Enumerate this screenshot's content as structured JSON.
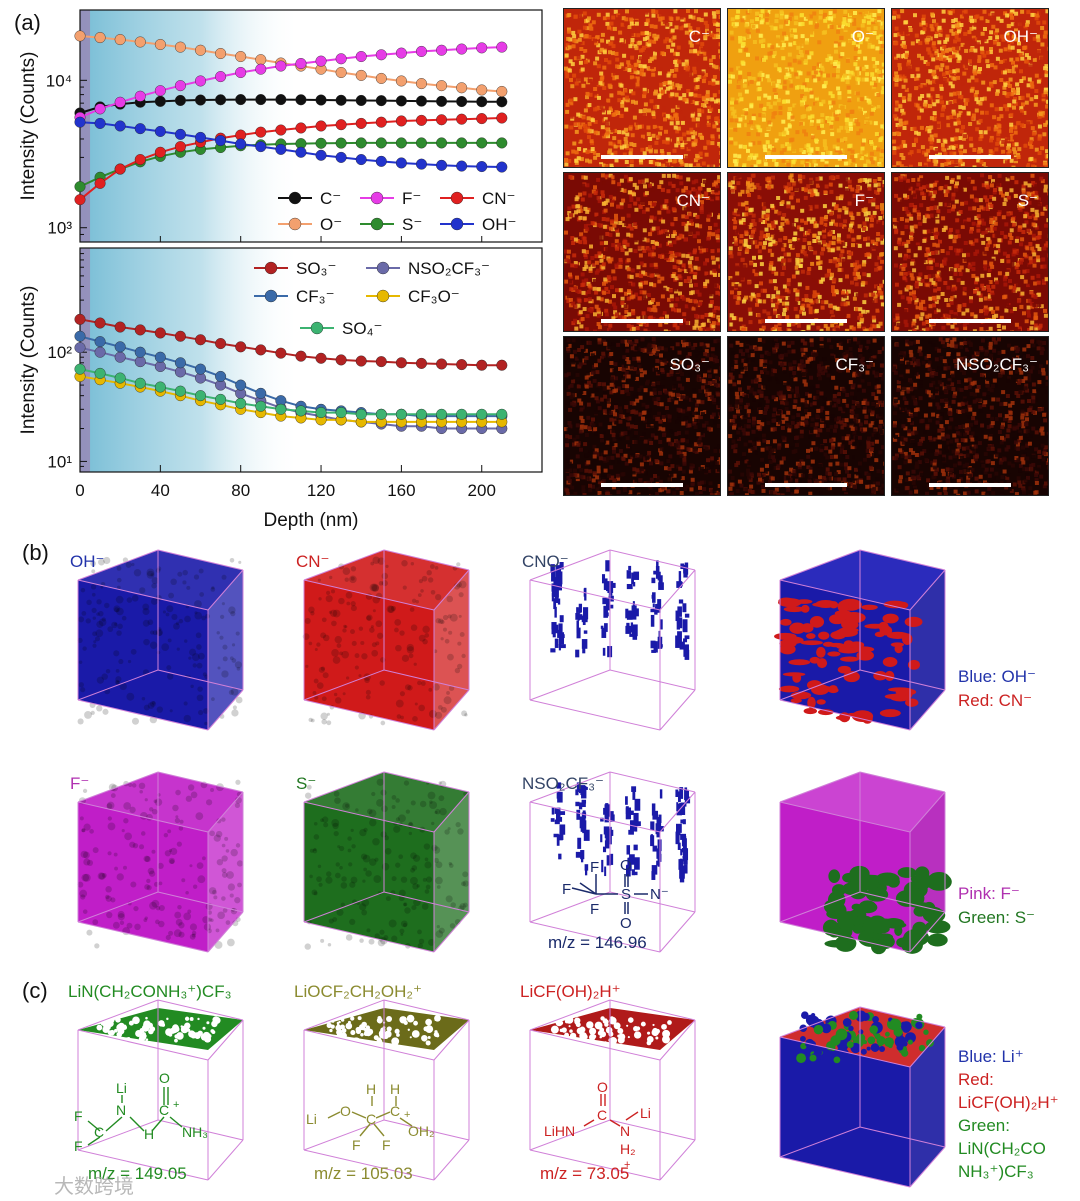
{
  "panel_labels": {
    "a": "(a)",
    "b": "(b)",
    "c": "(c)"
  },
  "chart_data": [
    {
      "type": "line",
      "id": "top",
      "title": "",
      "ylabel": "Intensity (Counts)",
      "yscale": "log",
      "ylim": [
        800,
        30000
      ],
      "xlim": [
        0,
        230
      ],
      "yticks": [
        "10³",
        "10⁴"
      ],
      "shaded_region_depth": [
        0,
        110
      ],
      "series": [
        {
          "name": "C⁻",
          "color": "#111111",
          "x": [
            0,
            10,
            20,
            30,
            40,
            50,
            60,
            70,
            80,
            90,
            100,
            110,
            120,
            130,
            140,
            150,
            160,
            170,
            180,
            190,
            200,
            210
          ],
          "values": [
            6000,
            6600,
            6900,
            7100,
            7200,
            7300,
            7350,
            7380,
            7400,
            7400,
            7400,
            7380,
            7350,
            7320,
            7300,
            7280,
            7250,
            7230,
            7200,
            7180,
            7160,
            7150
          ]
        },
        {
          "name": "O⁻",
          "color": "#f3a06e",
          "x": [
            0,
            10,
            20,
            30,
            40,
            50,
            60,
            70,
            80,
            90,
            100,
            110,
            120,
            130,
            140,
            150,
            160,
            170,
            180,
            190,
            200,
            210
          ],
          "values": [
            20000,
            19500,
            18900,
            18200,
            17500,
            16800,
            16000,
            15200,
            14500,
            13800,
            13100,
            12500,
            11900,
            11300,
            10800,
            10300,
            9900,
            9500,
            9200,
            8900,
            8600,
            8400
          ]
        },
        {
          "name": "F⁻",
          "color": "#e63ce6",
          "x": [
            0,
            10,
            20,
            30,
            40,
            50,
            60,
            70,
            80,
            90,
            100,
            110,
            120,
            130,
            140,
            150,
            160,
            170,
            180,
            190,
            200,
            210
          ],
          "values": [
            5600,
            6400,
            7100,
            7800,
            8500,
            9200,
            9900,
            10600,
            11300,
            11900,
            12500,
            13000,
            13500,
            14000,
            14500,
            14900,
            15300,
            15700,
            16000,
            16300,
            16600,
            16800
          ]
        },
        {
          "name": "S⁻",
          "color": "#2e8b2e",
          "x": [
            0,
            10,
            20,
            30,
            40,
            50,
            60,
            70,
            80,
            90,
            100,
            110,
            120,
            130,
            140,
            150,
            160,
            170,
            180,
            190,
            200,
            210
          ],
          "values": [
            1900,
            2200,
            2500,
            2800,
            3050,
            3250,
            3400,
            3500,
            3600,
            3650,
            3700,
            3720,
            3740,
            3750,
            3760,
            3760,
            3760,
            3760,
            3760,
            3760,
            3760,
            3760
          ]
        },
        {
          "name": "CN⁻",
          "color": "#e02020",
          "x": [
            0,
            10,
            20,
            30,
            40,
            50,
            60,
            70,
            80,
            90,
            100,
            110,
            120,
            130,
            140,
            150,
            160,
            170,
            180,
            190,
            200,
            210
          ],
          "values": [
            1550,
            2000,
            2500,
            2900,
            3250,
            3550,
            3800,
            4050,
            4250,
            4450,
            4600,
            4750,
            4900,
            5000,
            5100,
            5200,
            5300,
            5350,
            5400,
            5450,
            5500,
            5550
          ]
        },
        {
          "name": "OH⁻",
          "color": "#2233cc",
          "x": [
            0,
            10,
            20,
            30,
            40,
            50,
            60,
            70,
            80,
            90,
            100,
            110,
            120,
            130,
            140,
            150,
            160,
            170,
            180,
            190,
            200,
            210
          ],
          "values": [
            5200,
            5100,
            4900,
            4700,
            4500,
            4300,
            4100,
            3900,
            3700,
            3550,
            3400,
            3250,
            3100,
            3000,
            2900,
            2820,
            2750,
            2700,
            2650,
            2620,
            2600,
            2580
          ]
        }
      ],
      "legend": {
        "position": "bottom-right"
      }
    },
    {
      "type": "line",
      "id": "bottom",
      "ylabel": "Intensity (Counts)",
      "xlabel": "Depth (nm)",
      "yscale": "log",
      "ylim": [
        8,
        900
      ],
      "xlim": [
        0,
        230
      ],
      "xticks": [
        "0",
        "40",
        "80",
        "120",
        "160",
        "200"
      ],
      "yticks": [
        "10¹",
        "10²"
      ],
      "shaded_region_depth": [
        0,
        110
      ],
      "series": [
        {
          "name": "SO₃⁻",
          "color": "#b22222",
          "x": [
            0,
            10,
            20,
            30,
            40,
            50,
            60,
            70,
            80,
            90,
            100,
            110,
            120,
            130,
            140,
            150,
            160,
            170,
            180,
            190,
            200,
            210
          ],
          "values": [
            200,
            185,
            170,
            160,
            150,
            140,
            130,
            120,
            112,
            105,
            98,
            92,
            88,
            85,
            83,
            82,
            80,
            79,
            78,
            77,
            76,
            76
          ]
        },
        {
          "name": "NSO₂CF₃⁻",
          "color": "#6a6aa8",
          "x": [
            0,
            10,
            20,
            30,
            40,
            50,
            60,
            70,
            80,
            90,
            100,
            110,
            120,
            130,
            140,
            150,
            160,
            170,
            180,
            190,
            200,
            210
          ],
          "values": [
            110,
            100,
            90,
            82,
            74,
            66,
            58,
            50,
            42,
            36,
            31,
            28,
            26,
            24,
            23,
            22,
            21,
            21,
            20,
            20,
            20,
            20
          ]
        },
        {
          "name": "CF₃⁻",
          "color": "#3a6aa8",
          "x": [
            0,
            10,
            20,
            30,
            40,
            50,
            60,
            70,
            80,
            90,
            100,
            110,
            120,
            130,
            140,
            150,
            160,
            170,
            180,
            190,
            200,
            210
          ],
          "values": [
            140,
            125,
            112,
            100,
            90,
            80,
            70,
            60,
            50,
            42,
            36,
            32,
            30,
            29,
            28,
            27,
            27,
            26,
            26,
            26,
            26,
            26
          ]
        },
        {
          "name": "CF₃O⁻",
          "color": "#e6b800",
          "x": [
            0,
            10,
            20,
            30,
            40,
            50,
            60,
            70,
            80,
            90,
            100,
            110,
            120,
            130,
            140,
            150,
            160,
            170,
            180,
            190,
            200,
            210
          ],
          "values": [
            60,
            56,
            52,
            48,
            44,
            40,
            36,
            33,
            30,
            28,
            26,
            25,
            24,
            24,
            23,
            23,
            23,
            23,
            23,
            23,
            23,
            23
          ]
        },
        {
          "name": "SO₄⁻",
          "color": "#3cb371",
          "x": [
            0,
            10,
            20,
            30,
            40,
            50,
            60,
            70,
            80,
            90,
            100,
            110,
            120,
            130,
            140,
            150,
            160,
            170,
            180,
            190,
            200,
            210
          ],
          "values": [
            70,
            64,
            58,
            52,
            48,
            44,
            40,
            37,
            34,
            32,
            30,
            29,
            28,
            28,
            27,
            27,
            27,
            27,
            27,
            27,
            27,
            27
          ]
        }
      ],
      "legend": {
        "position": "top-right"
      }
    }
  ],
  "maps": [
    {
      "label": "C⁻",
      "palette": "hot-orange"
    },
    {
      "label": "O⁻",
      "palette": "yellow"
    },
    {
      "label": "OH⁻",
      "palette": "hot-orange"
    },
    {
      "label": "CN⁻",
      "palette": "red-dark"
    },
    {
      "label": "F⁻",
      "palette": "red-yellow"
    },
    {
      "label": "S⁻",
      "palette": "red-dark"
    },
    {
      "label": "SO₃⁻",
      "palette": "dark"
    },
    {
      "label": "CF₃⁻",
      "palette": "dark"
    },
    {
      "label": "NSO₂CF₃⁻",
      "palette": "dark"
    }
  ],
  "cubes_b": [
    {
      "label": "OH⁻",
      "label_color": "#2233aa",
      "fill": "#1a1aa8"
    },
    {
      "label": "CN⁻",
      "label_color": "#cc2222",
      "fill": "#d01a1a"
    },
    {
      "label": "CNO⁻",
      "label_color": "#334466",
      "fill": "sparse-blue"
    },
    {
      "label": "",
      "label_color": "#333",
      "fill": "blue-red"
    },
    {
      "label": "F⁻",
      "label_color": "#b030b0",
      "fill": "#c01ec8"
    },
    {
      "label": "S⁻",
      "label_color": "#227722",
      "fill": "#1e6e1e"
    },
    {
      "label": "NSO₂CF₃⁻",
      "label_color": "#334466",
      "fill": "sparse-blue"
    },
    {
      "label": "",
      "label_color": "#333",
      "fill": "pink-green"
    }
  ],
  "legend_b": {
    "row1": [
      "Blue: OH⁻",
      "Red: CN⁻"
    ],
    "row2": [
      "Pink: F⁻",
      "Green: S⁻"
    ]
  },
  "mz_b": "m/z = 146.96",
  "cubes_c": [
    {
      "label": "LiN(CH₂CONH₃⁺)CF₃",
      "label_color": "#228b22",
      "mz": "m/z = 149.05",
      "mz_color": "#228b22"
    },
    {
      "label": "LiOCF₂CH₂OH₂⁺",
      "label_color": "#8b8b30",
      "mz": "m/z = 105.03",
      "mz_color": "#8b8b30"
    },
    {
      "label": "LiCF(OH)₂H⁺",
      "label_color": "#cc2222",
      "mz": "m/z = 73.05",
      "mz_color": "#cc2222"
    }
  ],
  "legend_c": [
    "Blue: Li⁺",
    "Red:",
    "LiCF(OH)₂H⁺",
    "Green:",
    "LiN(CH₂CO",
    "NH₃⁺)CF₃"
  ],
  "watermark": "大数跨境",
  "structures": {
    "nso2cf3": {
      "F1": "F",
      "F2": "F",
      "F3": "F",
      "S": "S",
      "O1": "O",
      "O2": "O",
      "N": "N⁻"
    },
    "c1": {
      "Li": "Li",
      "N": "N",
      "O": "O",
      "C1": "C",
      "C2": "C",
      "H1": "H",
      "NH3": "NH₃",
      "plus": "+",
      "F1": "F",
      "F2": "F"
    },
    "c2": {
      "Li": "Li",
      "O": "O",
      "C1": "C",
      "C2": "C",
      "H1": "H",
      "H2": "H",
      "F1": "F",
      "F2": "F",
      "OH2": "OH₂",
      "plus": "+"
    },
    "c3": {
      "LiHN": "LiHN",
      "O": "O",
      "C": "C",
      "N": "N",
      "Li": "Li",
      "H2": "H₂",
      "plus": "+"
    }
  }
}
